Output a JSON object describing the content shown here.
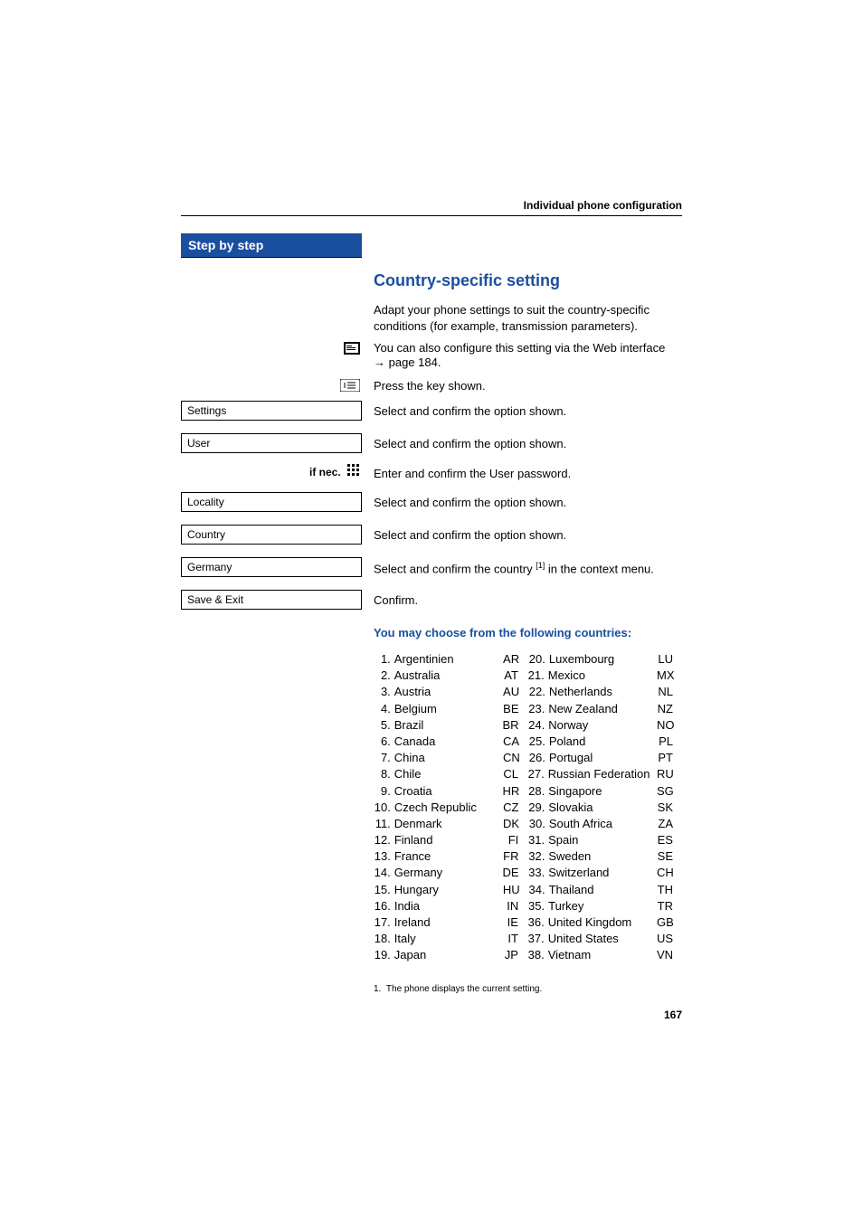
{
  "header": {
    "section": "Individual phone configuration"
  },
  "sidebar": {
    "title": "Step by step",
    "if_nec": "if nec.",
    "boxes": [
      "Settings",
      "User",
      "Locality",
      "Country",
      "Germany",
      "Save & Exit"
    ]
  },
  "main": {
    "title": "Country-specific setting",
    "intro": "Adapt your phone settings to suit the country-specific conditions (for example, transmission parameters).",
    "web_line_a": "You can also configure this setting via the Web interface",
    "web_line_b": "→ page 184.",
    "press_key": "Press the key shown.",
    "sel_confirm": "Select and confirm the option shown.",
    "enter_pwd": "Enter and confirm the User password.",
    "sel_country_pre": "Select and confirm the country ",
    "sel_country_post": " in the context menu.",
    "confirm": "Confirm.",
    "choose_head": "You may choose from the following countries:",
    "footnote_label": "1.",
    "footnote_text": "The phone displays the current setting.",
    "page_number": "167"
  },
  "countries_left": [
    {
      "n": "1.",
      "name": "Argentinien",
      "code": "AR"
    },
    {
      "n": "2.",
      "name": "Australia",
      "code": "AT"
    },
    {
      "n": "3.",
      "name": "Austria",
      "code": "AU"
    },
    {
      "n": "4.",
      "name": "Belgium",
      "code": "BE"
    },
    {
      "n": "5.",
      "name": "Brazil",
      "code": "BR"
    },
    {
      "n": "6.",
      "name": "Canada",
      "code": "CA"
    },
    {
      "n": "7.",
      "name": "China",
      "code": "CN"
    },
    {
      "n": "8.",
      "name": "Chile",
      "code": "CL"
    },
    {
      "n": "9.",
      "name": "Croatia",
      "code": "HR"
    },
    {
      "n": "10.",
      "name": "Czech Republic",
      "code": "CZ"
    },
    {
      "n": "11.",
      "name": "Denmark",
      "code": "DK"
    },
    {
      "n": "12.",
      "name": "Finland",
      "code": "FI"
    },
    {
      "n": "13.",
      "name": "France",
      "code": "FR"
    },
    {
      "n": "14.",
      "name": "Germany",
      "code": "DE"
    },
    {
      "n": "15.",
      "name": "Hungary",
      "code": "HU"
    },
    {
      "n": "16.",
      "name": "India",
      "code": "IN"
    },
    {
      "n": "17.",
      "name": "Ireland",
      "code": "IE"
    },
    {
      "n": "18.",
      "name": "Italy",
      "code": "IT"
    },
    {
      "n": "19.",
      "name": "Japan",
      "code": "JP"
    }
  ],
  "countries_right": [
    {
      "n": "20.",
      "name": "Luxembourg",
      "code": "LU"
    },
    {
      "n": "21.",
      "name": "Mexico",
      "code": "MX"
    },
    {
      "n": "22.",
      "name": "Netherlands",
      "code": "NL"
    },
    {
      "n": "23.",
      "name": "New Zealand",
      "code": "NZ"
    },
    {
      "n": "24.",
      "name": "Norway",
      "code": "NO"
    },
    {
      "n": "25.",
      "name": "Poland",
      "code": "PL"
    },
    {
      "n": "26.",
      "name": "Portugal",
      "code": "PT"
    },
    {
      "n": "27.",
      "name": "Russian Federation",
      "code": "RU"
    },
    {
      "n": "28.",
      "name": "Singapore",
      "code": "SG"
    },
    {
      "n": "29.",
      "name": "Slovakia",
      "code": "SK"
    },
    {
      "n": "30.",
      "name": "South Africa",
      "code": "ZA"
    },
    {
      "n": "31.",
      "name": "Spain",
      "code": "ES"
    },
    {
      "n": "32.",
      "name": "Sweden",
      "code": "SE"
    },
    {
      "n": "33.",
      "name": "Switzerland",
      "code": "CH"
    },
    {
      "n": "34.",
      "name": "Thailand",
      "code": "TH"
    },
    {
      "n": "35.",
      "name": "Turkey",
      "code": "TR"
    },
    {
      "n": "36.",
      "name": "United Kingdom",
      "code": "GB"
    },
    {
      "n": "37.",
      "name": "United States",
      "code": "US"
    },
    {
      "n": "38.",
      "name": "Vietnam",
      "code": "VN"
    }
  ]
}
